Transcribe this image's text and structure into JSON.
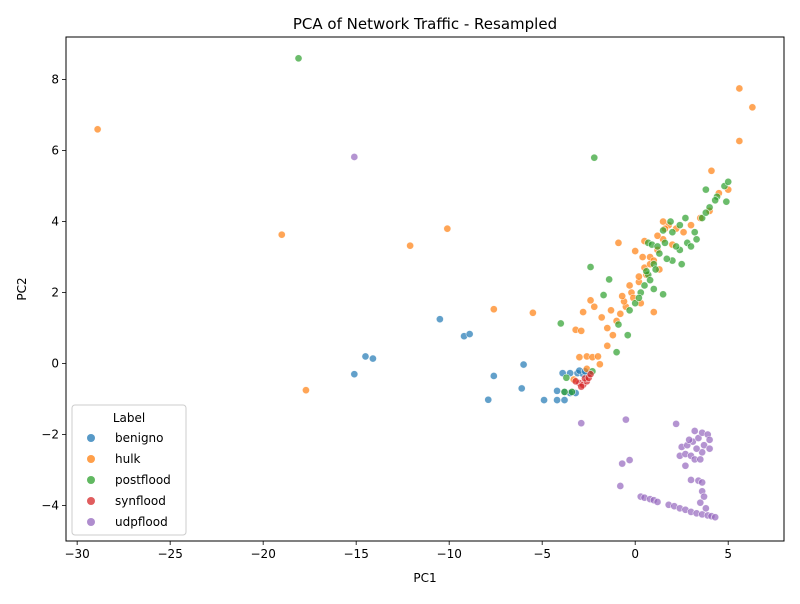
{
  "colors": {
    "benigno": "#1f77b4",
    "hulk": "#ff7f0e",
    "postflood": "#2ca02c",
    "synflood": "#d62728",
    "udpflood": "#9467bd"
  },
  "chart_data": {
    "type": "scatter",
    "title": "PCA of Network Traffic - Resampled",
    "xlabel": "PC1",
    "ylabel": "PC2",
    "xlim": [
      -30.6,
      8.0
    ],
    "ylim": [
      -5.0,
      9.2
    ],
    "xticks": [
      -30,
      -25,
      -20,
      -15,
      -10,
      -5,
      0,
      5
    ],
    "yticks": [
      -4,
      -2,
      0,
      2,
      4,
      6,
      8
    ],
    "grid": false,
    "legend": {
      "title": "Label",
      "placement": "lower-left",
      "entries": [
        "benigno",
        "hulk",
        "postflood",
        "synflood",
        "udpflood"
      ]
    },
    "series": [
      {
        "name": "benigno",
        "color": "#1f77b4",
        "points": [
          [
            -10.5,
            1.25
          ],
          [
            -9.2,
            0.77
          ],
          [
            -8.9,
            0.83
          ],
          [
            -14.5,
            0.2
          ],
          [
            -14.1,
            0.14
          ],
          [
            -15.1,
            -0.3
          ],
          [
            -7.6,
            -0.35
          ],
          [
            -6.0,
            -0.03
          ],
          [
            -6.1,
            -0.7
          ],
          [
            -7.9,
            -1.02
          ],
          [
            -4.9,
            -1.03
          ],
          [
            -4.2,
            -1.03
          ],
          [
            -3.8,
            -1.03
          ],
          [
            -4.2,
            -0.77
          ],
          [
            -3.8,
            -0.8
          ],
          [
            -3.4,
            -0.8
          ],
          [
            -3.2,
            -0.83
          ],
          [
            -3.5,
            -0.83
          ],
          [
            -3.9,
            -0.27
          ],
          [
            -3.5,
            -0.27
          ],
          [
            -3.1,
            -0.27
          ],
          [
            -2.8,
            -0.3
          ],
          [
            -2.5,
            -0.27
          ],
          [
            -3.0,
            -0.2
          ],
          [
            -2.7,
            -0.22
          ]
        ]
      },
      {
        "name": "hulk",
        "color": "#ff7f0e",
        "points": [
          [
            -28.9,
            6.6
          ],
          [
            -19.0,
            3.63
          ],
          [
            -12.1,
            3.32
          ],
          [
            -10.1,
            3.8
          ],
          [
            -17.7,
            -0.75
          ],
          [
            -7.6,
            1.53
          ],
          [
            -5.5,
            1.43
          ],
          [
            -3.2,
            0.95
          ],
          [
            -2.9,
            0.92
          ],
          [
            -2.6,
            0.2
          ],
          [
            -3.0,
            0.18
          ],
          [
            -2.3,
            0.18
          ],
          [
            -2.0,
            0.2
          ],
          [
            -1.5,
            0.5
          ],
          [
            -1.2,
            0.8
          ],
          [
            -0.8,
            1.4
          ],
          [
            -0.5,
            1.6
          ],
          [
            -0.2,
            2.0
          ],
          [
            0.2,
            2.3
          ],
          [
            0.5,
            2.7
          ],
          [
            0.8,
            3.0
          ],
          [
            1.2,
            3.2
          ],
          [
            1.5,
            3.5
          ],
          [
            1.8,
            3.9
          ],
          [
            0.0,
            3.17
          ],
          [
            0.4,
            3.0
          ],
          [
            0.2,
            2.45
          ],
          [
            0.5,
            3.45
          ],
          [
            0.8,
            2.8
          ],
          [
            1.0,
            1.45
          ],
          [
            -2.8,
            1.45
          ],
          [
            -2.4,
            1.78
          ],
          [
            -1.5,
            1.0
          ],
          [
            -1.0,
            1.2
          ],
          [
            -0.6,
            1.75
          ],
          [
            -0.9,
            3.4
          ],
          [
            1.2,
            3.6
          ],
          [
            1.6,
            3.8
          ],
          [
            2.2,
            3.8
          ],
          [
            1.5,
            4.0
          ],
          [
            4.1,
            5.43
          ],
          [
            4.5,
            4.8
          ],
          [
            5.0,
            4.9
          ],
          [
            5.6,
            7.75
          ],
          [
            6.3,
            7.22
          ],
          [
            5.6,
            6.27
          ],
          [
            -2.2,
            1.6
          ],
          [
            -1.8,
            1.3
          ],
          [
            -2.6,
            -0.15
          ],
          [
            -1.9,
            -0.02
          ],
          [
            -3.3,
            -0.45
          ],
          [
            -1.3,
            1.5
          ],
          [
            -0.3,
            2.2
          ],
          [
            0.6,
            2.5
          ],
          [
            1.0,
            2.9
          ],
          [
            2.0,
            3.35
          ],
          [
            2.6,
            3.7
          ],
          [
            3.0,
            3.9
          ],
          [
            3.5,
            4.1
          ],
          [
            4.0,
            4.3
          ],
          [
            -0.7,
            1.9
          ],
          [
            -0.1,
            1.85
          ],
          [
            0.3,
            1.7
          ],
          [
            1.3,
            2.65
          ]
        ]
      },
      {
        "name": "postflood",
        "color": "#2ca02c",
        "points": [
          [
            -18.1,
            8.6
          ],
          [
            -2.2,
            5.8
          ],
          [
            -2.4,
            2.72
          ],
          [
            -1.4,
            2.37
          ],
          [
            -1.7,
            1.93
          ],
          [
            -4.0,
            1.13
          ],
          [
            -1.0,
            0.32
          ],
          [
            -0.4,
            0.8
          ],
          [
            -0.9,
            1.1
          ],
          [
            -2.3,
            -0.22
          ],
          [
            -3.7,
            -0.4
          ],
          [
            -3.8,
            -0.8
          ],
          [
            -3.4,
            -0.8
          ],
          [
            -0.3,
            1.5
          ],
          [
            0.0,
            1.7
          ],
          [
            0.3,
            2.0
          ],
          [
            0.5,
            2.2
          ],
          [
            0.7,
            2.5
          ],
          [
            1.0,
            2.8
          ],
          [
            1.3,
            3.1
          ],
          [
            1.6,
            3.4
          ],
          [
            2.0,
            3.7
          ],
          [
            2.4,
            3.9
          ],
          [
            2.8,
            3.4
          ],
          [
            3.2,
            3.7
          ],
          [
            3.6,
            4.1
          ],
          [
            4.0,
            4.4
          ],
          [
            4.4,
            4.7
          ],
          [
            4.8,
            5.0
          ],
          [
            5.0,
            5.12
          ],
          [
            4.9,
            4.56
          ],
          [
            3.8,
            4.9
          ],
          [
            2.7,
            4.1
          ],
          [
            2.4,
            3.2
          ],
          [
            2.0,
            2.9
          ],
          [
            2.5,
            2.8
          ],
          [
            1.5,
            1.95
          ],
          [
            1.0,
            2.1
          ],
          [
            0.6,
            2.6
          ],
          [
            0.7,
            3.4
          ],
          [
            0.9,
            3.35
          ],
          [
            1.2,
            3.3
          ],
          [
            1.9,
            4.0
          ],
          [
            1.5,
            3.75
          ],
          [
            3.0,
            3.3
          ],
          [
            3.3,
            3.5
          ],
          [
            3.8,
            4.25
          ],
          [
            4.3,
            4.6
          ],
          [
            0.2,
            1.85
          ],
          [
            0.8,
            2.35
          ],
          [
            1.1,
            2.65
          ],
          [
            1.7,
            2.95
          ],
          [
            2.2,
            3.3
          ]
        ]
      },
      {
        "name": "synflood",
        "color": "#d62728",
        "points": [
          [
            -3.0,
            -0.55
          ],
          [
            -2.8,
            -0.6
          ],
          [
            -2.6,
            -0.5
          ],
          [
            -2.7,
            -0.42
          ],
          [
            -2.5,
            -0.4
          ],
          [
            -2.4,
            -0.3
          ],
          [
            -3.2,
            -0.5
          ],
          [
            -2.9,
            -0.65
          ]
        ]
      },
      {
        "name": "udpflood",
        "color": "#9467bd",
        "points": [
          [
            -15.1,
            5.82
          ],
          [
            -0.5,
            -1.58
          ],
          [
            -2.9,
            -1.68
          ],
          [
            2.2,
            -1.7
          ],
          [
            -0.3,
            -2.72
          ],
          [
            -0.7,
            -2.82
          ],
          [
            -0.8,
            -3.45
          ],
          [
            0.3,
            -3.75
          ],
          [
            0.5,
            -3.78
          ],
          [
            0.8,
            -3.82
          ],
          [
            1.0,
            -3.85
          ],
          [
            1.2,
            -3.9
          ],
          [
            1.8,
            -3.98
          ],
          [
            2.1,
            -4.02
          ],
          [
            2.4,
            -4.08
          ],
          [
            2.7,
            -4.12
          ],
          [
            3.0,
            -4.18
          ],
          [
            3.3,
            -4.22
          ],
          [
            3.6,
            -4.25
          ],
          [
            3.9,
            -4.28
          ],
          [
            4.1,
            -4.3
          ],
          [
            4.3,
            -4.33
          ],
          [
            3.0,
            -3.28
          ],
          [
            3.4,
            -3.3
          ],
          [
            3.6,
            -3.35
          ],
          [
            3.6,
            -3.6
          ],
          [
            3.7,
            -3.75
          ],
          [
            3.5,
            -3.92
          ],
          [
            3.8,
            -4.08
          ],
          [
            2.7,
            -2.88
          ],
          [
            2.4,
            -2.6
          ],
          [
            2.7,
            -2.55
          ],
          [
            2.5,
            -2.35
          ],
          [
            2.8,
            -2.3
          ],
          [
            3.0,
            -2.6
          ],
          [
            3.2,
            -2.7
          ],
          [
            3.5,
            -2.7
          ],
          [
            3.6,
            -2.5
          ],
          [
            3.1,
            -2.2
          ],
          [
            3.4,
            -2.1
          ],
          [
            3.6,
            -1.95
          ],
          [
            3.9,
            -2.0
          ],
          [
            4.0,
            -2.15
          ],
          [
            3.3,
            -2.4
          ],
          [
            3.7,
            -2.3
          ],
          [
            4.0,
            -2.4
          ],
          [
            2.9,
            -2.15
          ],
          [
            3.2,
            -1.9
          ]
        ]
      }
    ]
  }
}
